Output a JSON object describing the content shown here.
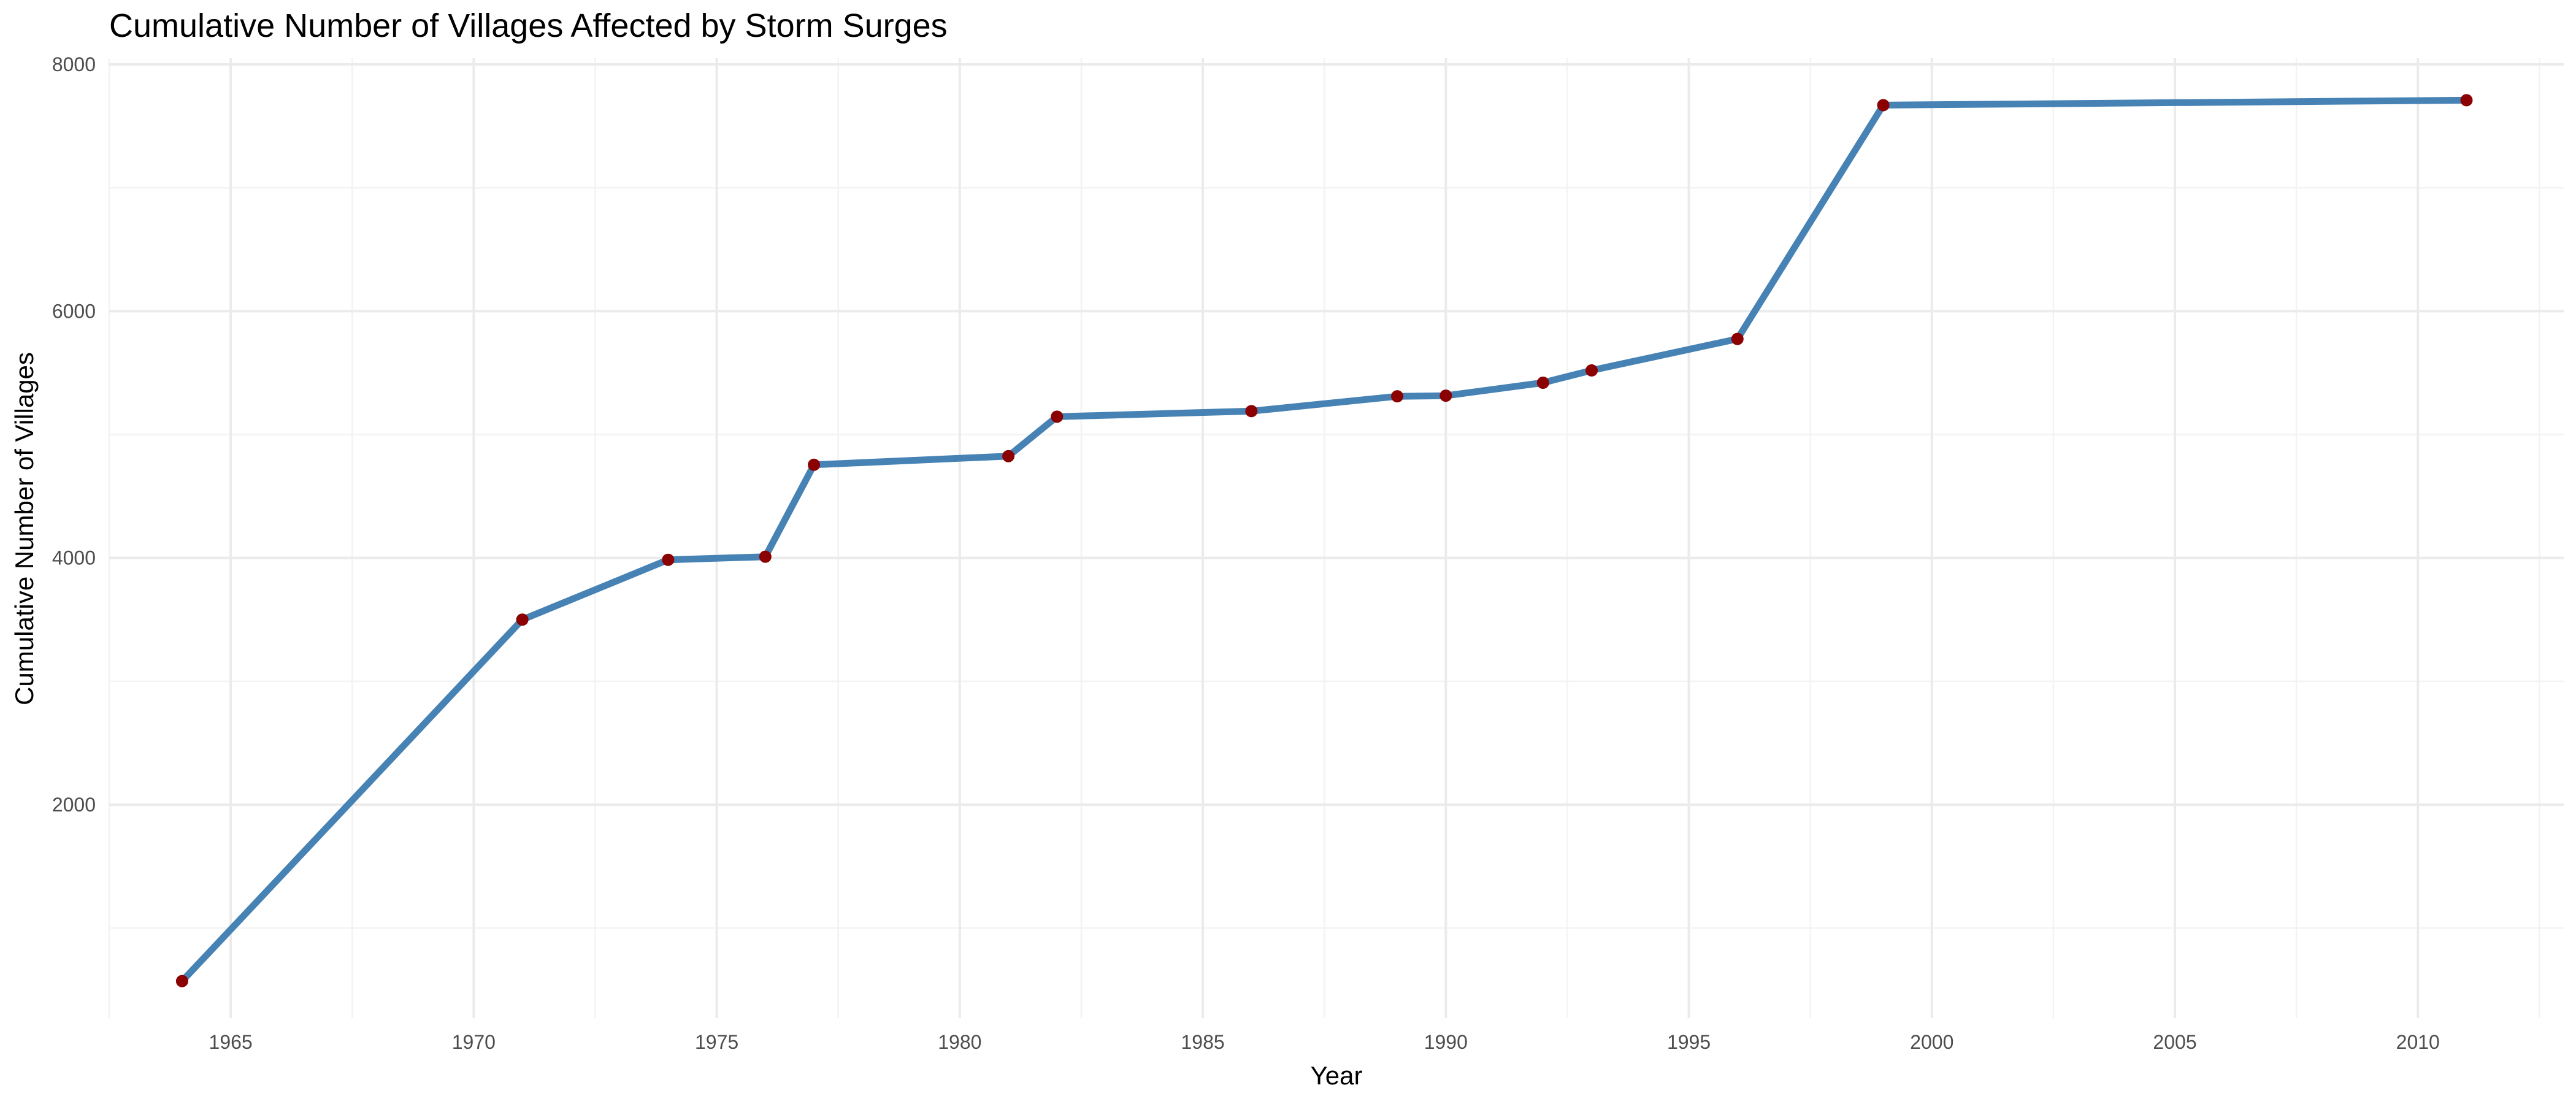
{
  "chart_data": {
    "type": "line",
    "title": "Cumulative Number of Villages Affected by Storm Surges",
    "xlabel": "Year",
    "ylabel": "Cumulative Number of Villages",
    "xlim": [
      1962.5,
      2013
    ],
    "ylim": [
      270,
      8050
    ],
    "x_ticks": [
      1965,
      1970,
      1975,
      1980,
      1985,
      1990,
      1995,
      2000,
      2005,
      2010
    ],
    "y_ticks": [
      2000,
      4000,
      6000,
      8000
    ],
    "grid": true,
    "legend": "none",
    "series": [
      {
        "x": [
          1964,
          1971,
          1974,
          1976,
          1977,
          1981,
          1982,
          1986,
          1989,
          1990,
          1992,
          1993,
          1996,
          1999,
          2011
        ],
        "y": [
          570,
          3500,
          3985,
          4010,
          4755,
          4825,
          5145,
          5190,
          5310,
          5315,
          5420,
          5520,
          5775,
          7670,
          7710
        ]
      }
    ],
    "colors": {
      "line": "#4682b4",
      "point": "#8b0000"
    }
  }
}
